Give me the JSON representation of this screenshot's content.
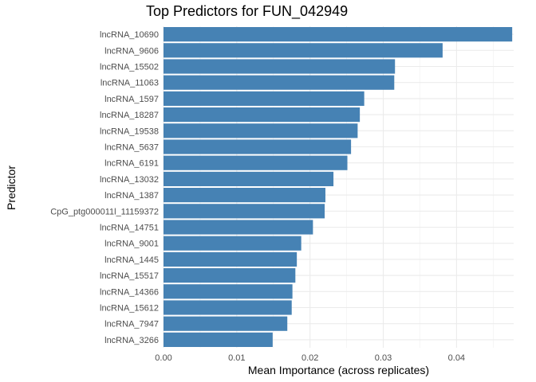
{
  "chart_data": {
    "type": "bar",
    "orientation": "horizontal",
    "title": "Top Predictors for FUN_042949",
    "xlabel": "Mean Importance (across replicates)",
    "ylabel": "Predictor",
    "xlim": [
      0,
      0.0478
    ],
    "x_ticks": [
      0.0,
      0.01,
      0.02,
      0.03,
      0.04
    ],
    "x_tick_labels": [
      "0.00",
      "0.01",
      "0.02",
      "0.03",
      "0.04"
    ],
    "grid": true,
    "bar_color": "#4682B4",
    "categories": [
      "lncRNA_10690",
      "lncRNA_9606",
      "lncRNA_15502",
      "lncRNA_11063",
      "lncRNA_1597",
      "lncRNA_18287",
      "lncRNA_19538",
      "lncRNA_5637",
      "lncRNA_6191",
      "lncRNA_13032",
      "lncRNA_1387",
      "CpG_ptg000011l_11159372",
      "lncRNA_14751",
      "lncRNA_9001",
      "lncRNA_1445",
      "lncRNA_15517",
      "lncRNA_14366",
      "lncRNA_15612",
      "lncRNA_7947",
      "lncRNA_3266"
    ],
    "values": [
      0.0476,
      0.0381,
      0.0316,
      0.0315,
      0.0274,
      0.0268,
      0.0265,
      0.0256,
      0.0251,
      0.0232,
      0.0221,
      0.022,
      0.0204,
      0.0188,
      0.0182,
      0.018,
      0.0176,
      0.0175,
      0.0169,
      0.0149
    ]
  }
}
